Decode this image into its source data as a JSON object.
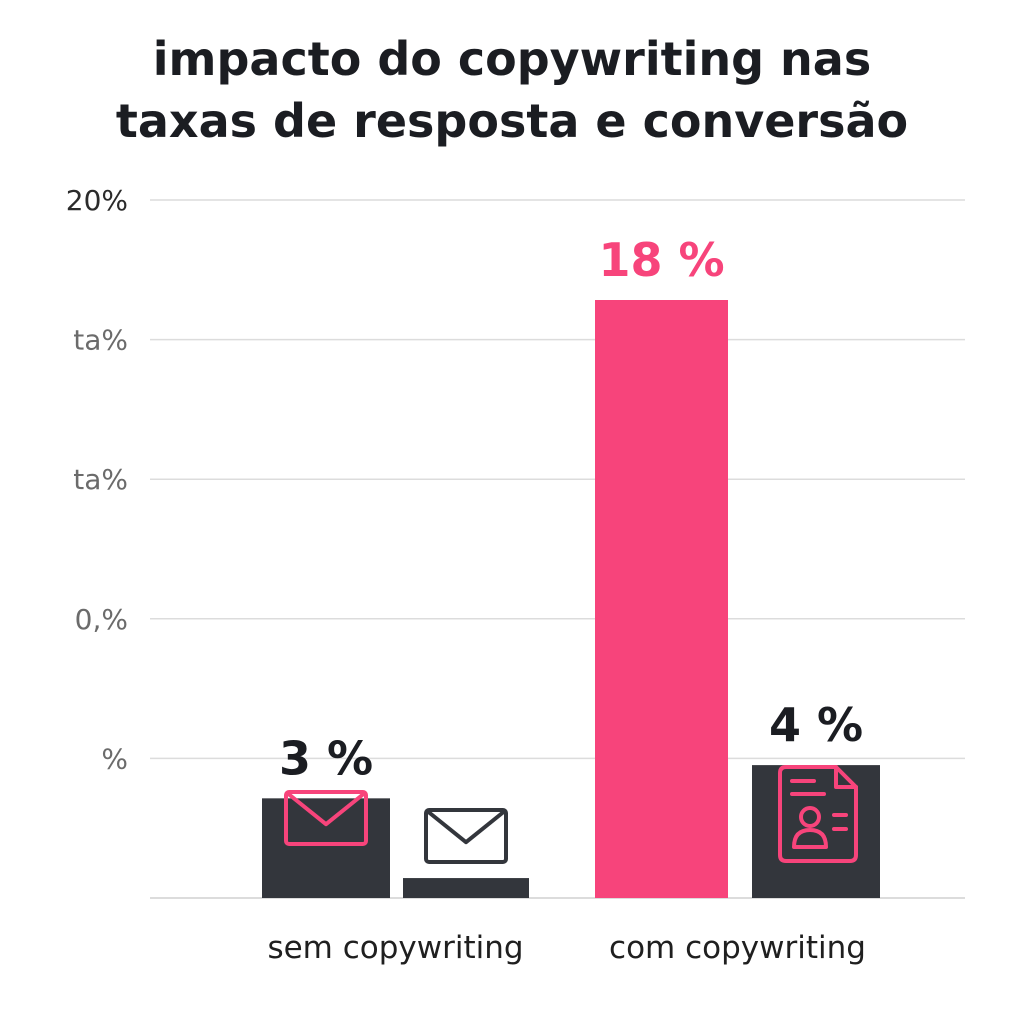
{
  "chart_data": {
    "type": "bar",
    "title_lines": [
      "impacto do copywriting nas",
      "taxas de resposta e conversão"
    ],
    "y_tick_labels": [
      "20%",
      "ta%",
      "ta%",
      "0,%",
      "%",
      ""
    ],
    "ylim": [
      0,
      20
    ],
    "categories": [
      "sem copywriting",
      "com copywriting"
    ],
    "series": [
      {
        "values": [
          3,
          18
        ],
        "labels": [
          "3 %",
          "18 %"
        ],
        "icons": [
          "envelope-icon",
          ""
        ]
      },
      {
        "values": [
          0.6,
          4
        ],
        "labels": [
          "",
          "4 %"
        ],
        "icons": [
          "envelope-icon",
          "contact-document-icon"
        ]
      }
    ],
    "colors": {
      "dark_bar": "#33363c",
      "accent": "#f7447b",
      "grid": "#dcdcdc",
      "text": "#1b1d22"
    },
    "grid": true
  }
}
